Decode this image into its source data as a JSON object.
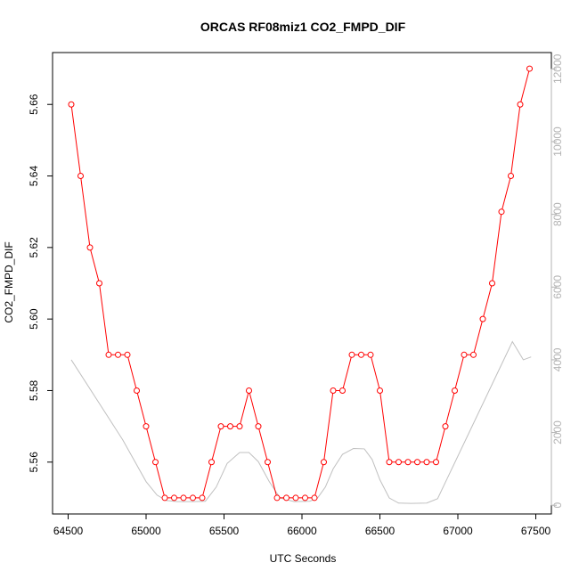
{
  "chart_data": {
    "type": "line",
    "title": "ORCAS RF08miz1 CO2_FMPD_DIF",
    "xlabel": "UTC Seconds",
    "ylabel": "CO2_FMPD_DIF",
    "xlim": [
      64400,
      67600
    ],
    "ylim": [
      5.5455,
      5.6745
    ],
    "y2lim": [
      -240,
      12450
    ],
    "x_ticks": [
      64500,
      65000,
      65500,
      66000,
      66500,
      67000,
      67500
    ],
    "y_ticks": [
      5.56,
      5.58,
      5.6,
      5.62,
      5.64,
      5.66
    ],
    "y2_ticks": [
      0,
      2000,
      4000,
      6000,
      8000,
      10000,
      12000
    ],
    "series": [
      {
        "axis": "left",
        "style": "line+open-circle",
        "color": "#ff0000",
        "x": [
          64520,
          64580,
          64640,
          64700,
          64760,
          64820,
          64880,
          64940,
          65000,
          65060,
          65120,
          65180,
          65240,
          65300,
          65360,
          65420,
          65480,
          65540,
          65600,
          65660,
          65720,
          65780,
          65840,
          65900,
          65960,
          66020,
          66080,
          66140,
          66200,
          66260,
          66320,
          66380,
          66440,
          66500,
          66560,
          66620,
          66680,
          66740,
          66800,
          66860,
          66920,
          66980,
          67040,
          67100,
          67160,
          67220,
          67280,
          67340,
          67400,
          67460
        ],
        "y": [
          5.66,
          5.64,
          5.62,
          5.61,
          5.59,
          5.59,
          5.59,
          5.58,
          5.57,
          5.56,
          5.55,
          5.55,
          5.55,
          5.55,
          5.55,
          5.56,
          5.57,
          5.57,
          5.57,
          5.58,
          5.57,
          5.56,
          5.55,
          5.55,
          5.55,
          5.55,
          5.55,
          5.56,
          5.58,
          5.58,
          5.59,
          5.59,
          5.59,
          5.58,
          5.56,
          5.56,
          5.56,
          5.56,
          5.56,
          5.56,
          5.57,
          5.58,
          5.59,
          5.59,
          5.6,
          5.61,
          5.63,
          5.64,
          5.66,
          5.67
        ]
      },
      {
        "axis": "right",
        "style": "line",
        "color": "#c0c0c0",
        "x": [
          64520,
          64700,
          64850,
          65000,
          65070,
          65130,
          65200,
          65300,
          65380,
          65450,
          65520,
          65600,
          65660,
          65720,
          65790,
          65860,
          65950,
          66050,
          66100,
          66150,
          66200,
          66260,
          66330,
          66400,
          66450,
          66500,
          66560,
          66620,
          66700,
          66800,
          66870,
          66950,
          67050,
          67150,
          67250,
          67350,
          67420,
          67470
        ],
        "y": [
          4000,
          2800,
          1800,
          650,
          280,
          130,
          100,
          100,
          110,
          500,
          1150,
          1450,
          1450,
          1200,
          650,
          200,
          100,
          110,
          200,
          500,
          1000,
          1400,
          1560,
          1550,
          1260,
          700,
          200,
          60,
          50,
          60,
          180,
          900,
          1800,
          2700,
          3600,
          4500,
          4000,
          4080
        ]
      }
    ],
    "grid": false,
    "legend": "none"
  }
}
